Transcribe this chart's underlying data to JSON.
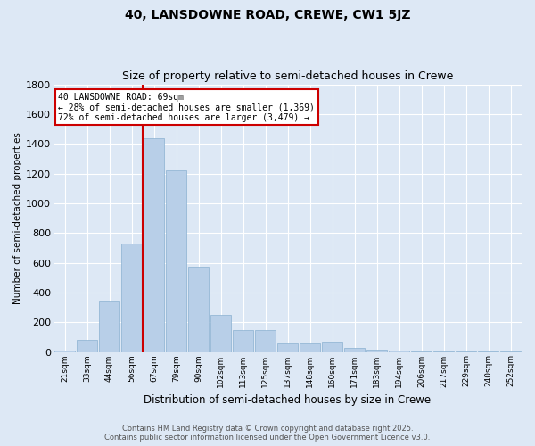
{
  "title": "40, LANSDOWNE ROAD, CREWE, CW1 5JZ",
  "subtitle": "Size of property relative to semi-detached houses in Crewe",
  "xlabel": "Distribution of semi-detached houses by size in Crewe",
  "ylabel": "Number of semi-detached properties",
  "categories": [
    "21sqm",
    "33sqm",
    "44sqm",
    "56sqm",
    "67sqm",
    "79sqm",
    "90sqm",
    "102sqm",
    "113sqm",
    "125sqm",
    "137sqm",
    "148sqm",
    "160sqm",
    "171sqm",
    "183sqm",
    "194sqm",
    "206sqm",
    "217sqm",
    "229sqm",
    "240sqm",
    "252sqm"
  ],
  "values": [
    10,
    80,
    340,
    730,
    1440,
    1220,
    575,
    250,
    150,
    150,
    55,
    55,
    70,
    25,
    15,
    10,
    5,
    5,
    3,
    3,
    3
  ],
  "bar_color": "#b8cfe8",
  "bar_edge_color": "#8ab0d0",
  "highlight_bar_index": 4,
  "annotation_title": "40 LANSDOWNE ROAD: 69sqm",
  "annotation_line1": "← 28% of semi-detached houses are smaller (1,369)",
  "annotation_line2": "72% of semi-detached houses are larger (3,479) →",
  "ylim": [
    0,
    1800
  ],
  "yticks": [
    0,
    200,
    400,
    600,
    800,
    1000,
    1200,
    1400,
    1600,
    1800
  ],
  "bg_color": "#dde8f5",
  "plot_bg_color": "#dde8f5",
  "footer_line1": "Contains HM Land Registry data © Crown copyright and database right 2025.",
  "footer_line2": "Contains public sector information licensed under the Open Government Licence v3.0.",
  "title_fontsize": 10,
  "subtitle_fontsize": 9,
  "annotation_box_facecolor": "#ffffff",
  "annotation_box_edge": "#cc0000",
  "vline_color": "#cc0000"
}
